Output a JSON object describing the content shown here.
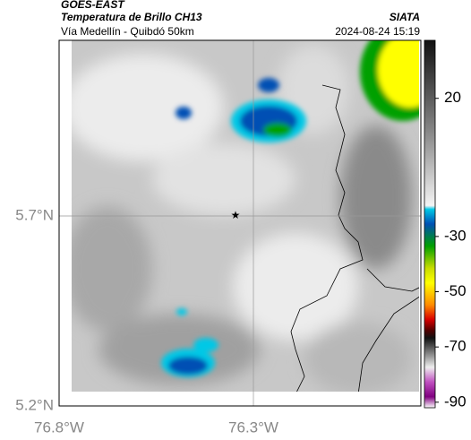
{
  "header": {
    "source": "GOES-EAST",
    "title": "Temperatura de Brillo CH13",
    "subtitle": "Vía Medellín - Quibdó 50km",
    "brand": "SIATA",
    "datetime": "2024-08-24 15:19"
  },
  "map": {
    "lat_labels": [
      "5.7°N",
      "5.2°N"
    ],
    "lon_labels": [
      "76.8°W",
      "76.3°W"
    ]
  },
  "colorbar": {
    "limits": [
      -92,
      41
    ],
    "ticks": [
      20,
      -30,
      -50,
      -70,
      -90
    ]
  }
}
